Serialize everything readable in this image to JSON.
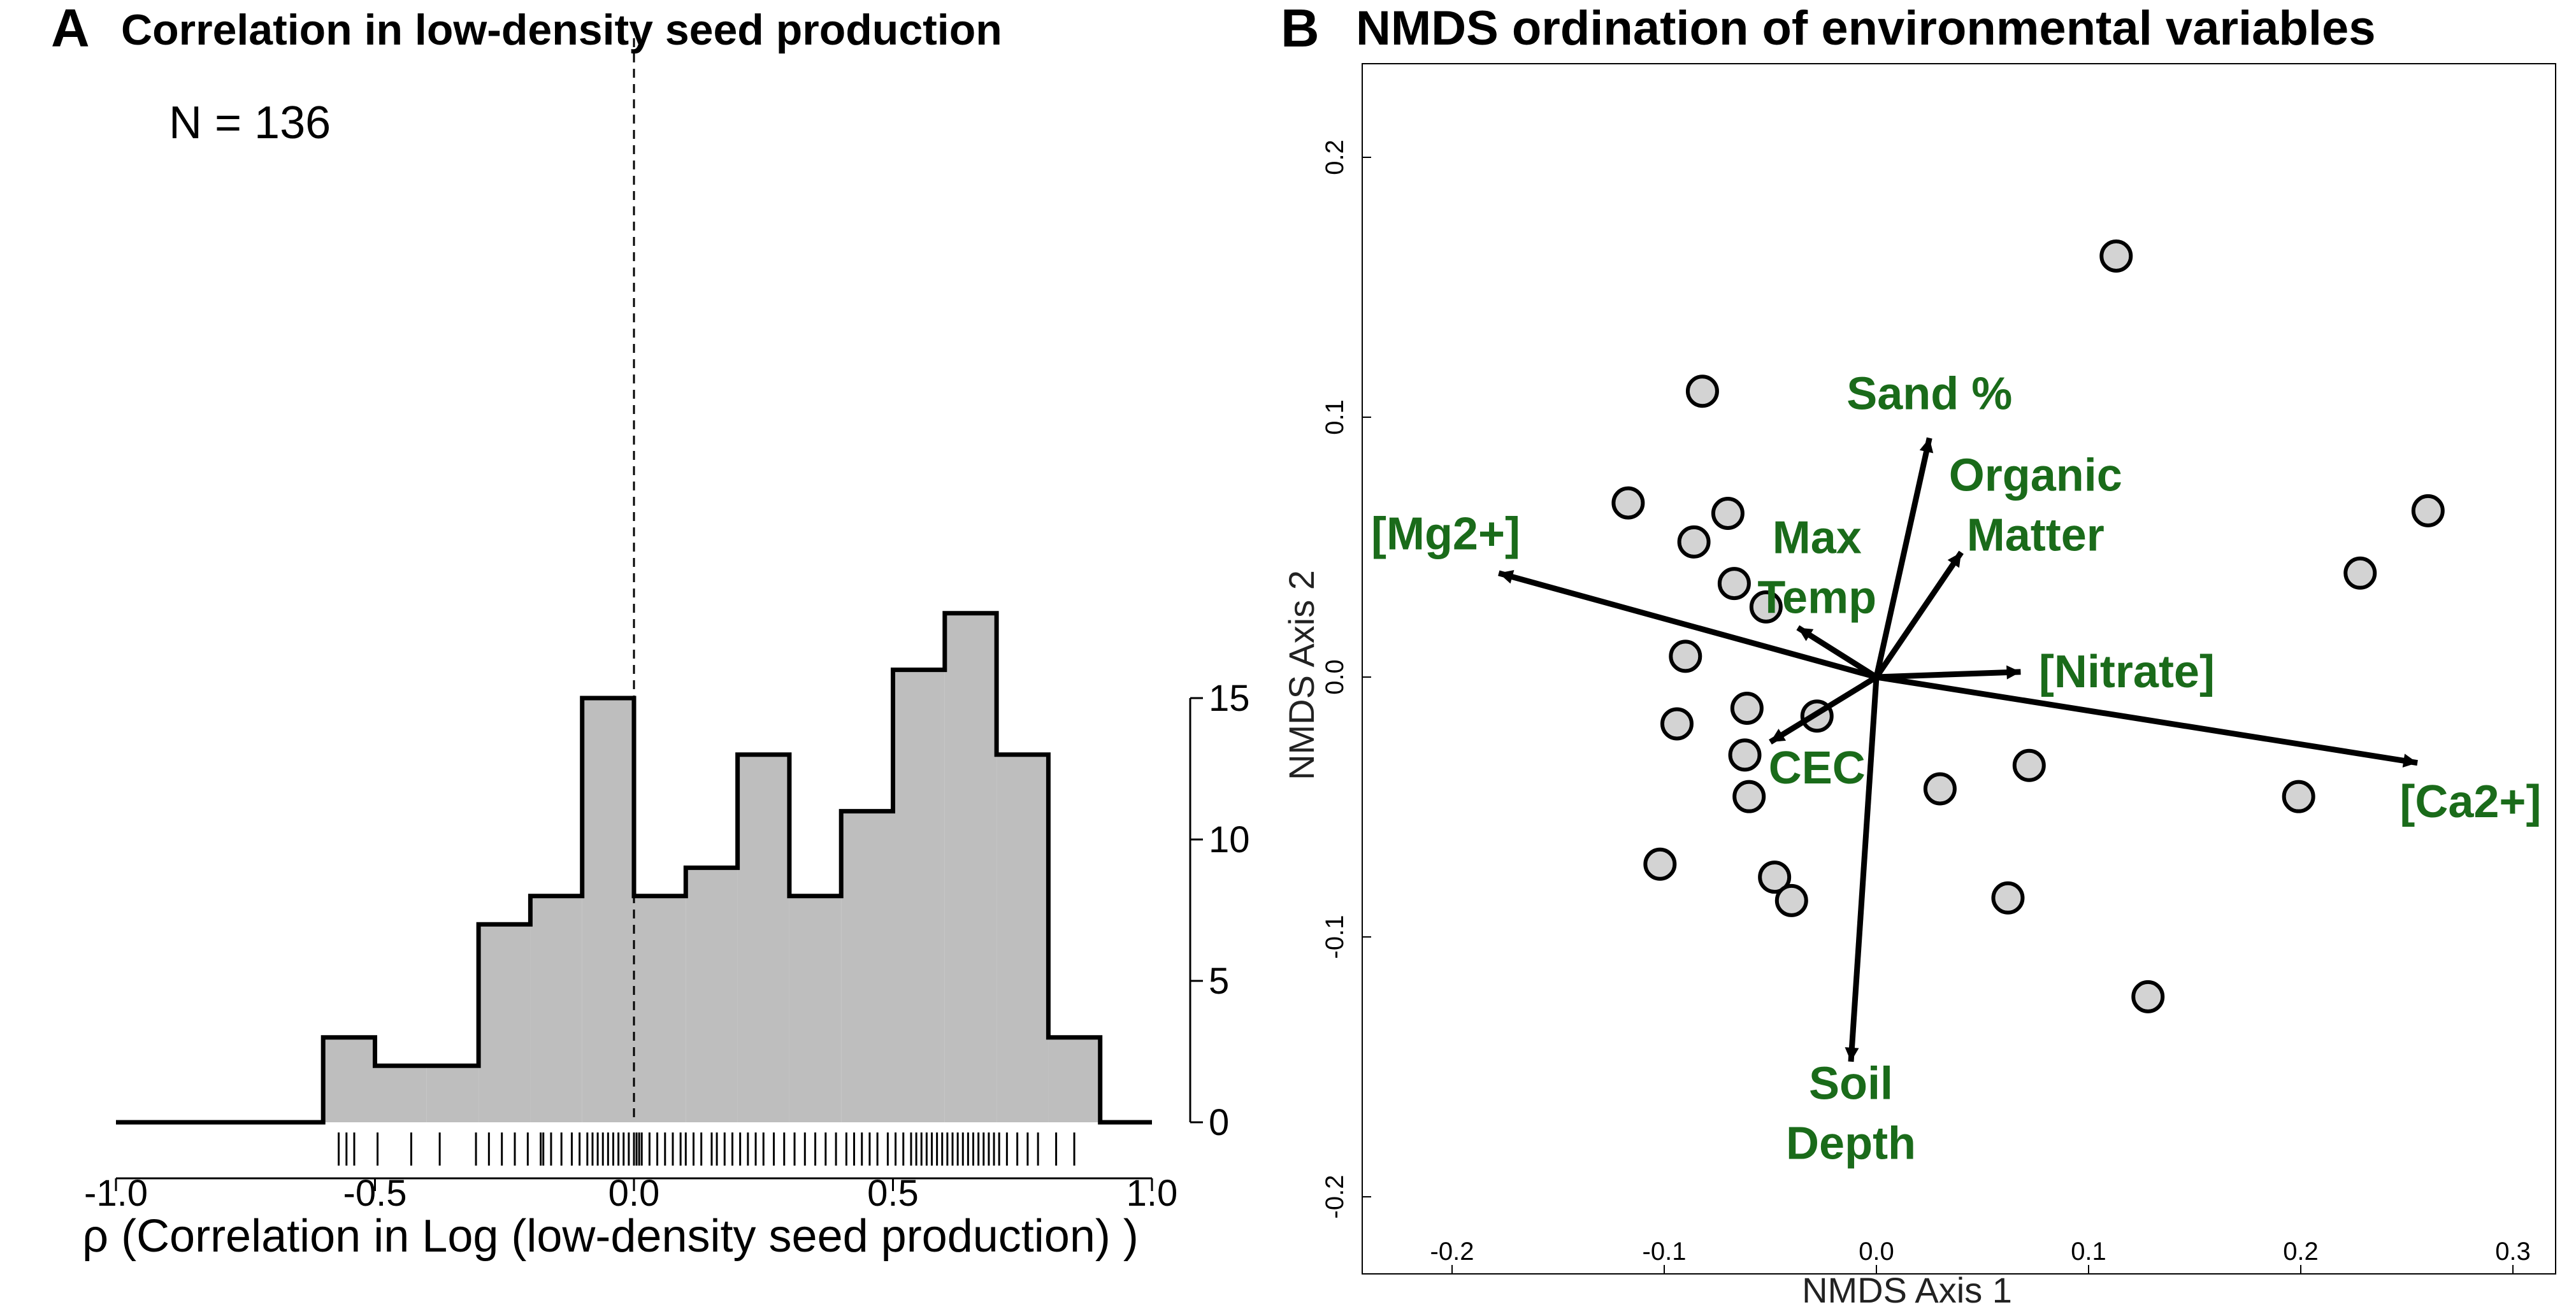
{
  "chart_data": [
    {
      "panel_letter": "A",
      "type": "histogram",
      "title": "Correlation in low-density seed production",
      "annotation": "N = 136",
      "xlabel": "ρ (Correlation in Log (low-density seed production) )",
      "ylabel": "",
      "xlim": [
        -1.0,
        1.0
      ],
      "ylim": [
        0,
        18
      ],
      "x_ticks": [
        "-1.0",
        "-0.5",
        "0.0",
        "0.5",
        "1.0"
      ],
      "y_ticks": [
        "0",
        "5",
        "10",
        "15"
      ],
      "y_axis_side": "right",
      "reference_line_x": 0.0,
      "bin_edges": [
        -1.0,
        -0.9,
        -0.8,
        -0.7,
        -0.6,
        -0.5,
        -0.4,
        -0.3,
        -0.2,
        -0.1,
        0.0,
        0.1,
        0.2,
        0.3,
        0.4,
        0.5,
        0.6,
        0.7,
        0.8,
        0.9,
        1.0
      ],
      "counts": [
        0,
        0,
        0,
        0,
        3,
        2,
        2,
        7,
        8,
        15,
        8,
        9,
        13,
        8,
        11,
        16,
        18,
        13,
        3,
        0
      ],
      "fill_color": "#bebebe",
      "rug_values": [
        -0.57,
        -0.555,
        -0.54,
        -0.495,
        -0.43,
        -0.375,
        -0.305,
        -0.28,
        -0.255,
        -0.23,
        -0.205,
        -0.18,
        -0.175,
        -0.16,
        -0.14,
        -0.12,
        -0.105,
        -0.09,
        -0.08,
        -0.07,
        -0.06,
        -0.05,
        -0.04,
        -0.03,
        -0.02,
        -0.01,
        0.0,
        0.005,
        0.01,
        0.015,
        0.03,
        0.045,
        0.06,
        0.075,
        0.09,
        0.1,
        0.115,
        0.13,
        0.15,
        0.16,
        0.175,
        0.19,
        0.205,
        0.22,
        0.235,
        0.25,
        0.27,
        0.29,
        0.31,
        0.33,
        0.35,
        0.37,
        0.39,
        0.41,
        0.425,
        0.44,
        0.455,
        0.47,
        0.49,
        0.505,
        0.52,
        0.535,
        0.545,
        0.555,
        0.565,
        0.575,
        0.585,
        0.595,
        0.605,
        0.615,
        0.625,
        0.635,
        0.645,
        0.655,
        0.665,
        0.675,
        0.685,
        0.695,
        0.705,
        0.72,
        0.74,
        0.76,
        0.78,
        0.815,
        0.85
      ]
    },
    {
      "panel_letter": "B",
      "type": "scatter",
      "title": "NMDS ordination of environmental variables",
      "xlabel": "NMDS Axis 1",
      "ylabel": "NMDS Axis 2",
      "xlim": [
        -0.24,
        0.315
      ],
      "ylim": [
        -0.225,
        0.235
      ],
      "x_ticks": [
        "-0.2",
        "-0.1",
        "0.0",
        "0.1",
        "0.2",
        "0.3"
      ],
      "y_ticks": [
        "-0.2",
        "-0.1",
        "0.0",
        "0.1",
        "0.2"
      ],
      "point_color": "#d3d3d3",
      "points": [
        {
          "x": 0.113,
          "y": 0.162
        },
        {
          "x": -0.082,
          "y": 0.11
        },
        {
          "x": -0.117,
          "y": 0.067
        },
        {
          "x": -0.07,
          "y": 0.063
        },
        {
          "x": -0.086,
          "y": 0.052
        },
        {
          "x": -0.067,
          "y": 0.036
        },
        {
          "x": -0.052,
          "y": 0.027
        },
        {
          "x": 0.26,
          "y": 0.064
        },
        {
          "x": 0.228,
          "y": 0.04
        },
        {
          "x": -0.09,
          "y": 0.008
        },
        {
          "x": -0.061,
          "y": -0.012
        },
        {
          "x": -0.028,
          "y": -0.015
        },
        {
          "x": -0.094,
          "y": -0.018
        },
        {
          "x": -0.062,
          "y": -0.03
        },
        {
          "x": -0.06,
          "y": -0.046
        },
        {
          "x": 0.072,
          "y": -0.034
        },
        {
          "x": 0.03,
          "y": -0.043
        },
        {
          "x": 0.199,
          "y": -0.046
        },
        {
          "x": -0.102,
          "y": -0.072
        },
        {
          "x": -0.048,
          "y": -0.077
        },
        {
          "x": -0.04,
          "y": -0.086
        },
        {
          "x": 0.062,
          "y": -0.085
        },
        {
          "x": 0.128,
          "y": -0.123
        }
      ],
      "arrows": [
        {
          "label": "[Mg2+]",
          "lines": [
            "[Mg2+]"
          ],
          "x": -0.178,
          "y": 0.04,
          "lx": -0.203,
          "ly": 0.055
        },
        {
          "label": "[Ca2+]",
          "lines": [
            "[Ca2+]"
          ],
          "x": 0.255,
          "y": -0.033,
          "lx": 0.28,
          "ly": -0.048
        },
        {
          "label": "Sand %",
          "lines": [
            "Sand %"
          ],
          "x": 0.025,
          "y": 0.092,
          "lx": 0.025,
          "ly": 0.109
        },
        {
          "label": "Organic Matter",
          "lines": [
            "Organic",
            "Matter"
          ],
          "x": 0.04,
          "y": 0.048,
          "lx": 0.075,
          "ly": 0.066
        },
        {
          "label": "Max Temp",
          "lines": [
            "Max",
            "Temp"
          ],
          "x": -0.037,
          "y": 0.019,
          "lx": -0.028,
          "ly": 0.042
        },
        {
          "label": "[Nitrate]",
          "lines": [
            "[Nitrate]"
          ],
          "x": 0.068,
          "y": 0.002,
          "lx": 0.118,
          "ly": 0.002
        },
        {
          "label": "CEC",
          "lines": [
            "CEC"
          ],
          "x": -0.05,
          "y": -0.025,
          "lx": -0.028,
          "ly": -0.035
        },
        {
          "label": "Soil Depth",
          "lines": [
            "Soil",
            "Depth"
          ],
          "x": -0.012,
          "y": -0.148,
          "lx": -0.012,
          "ly": -0.168
        }
      ],
      "arrow_label_color": "#1a6b1a"
    }
  ]
}
